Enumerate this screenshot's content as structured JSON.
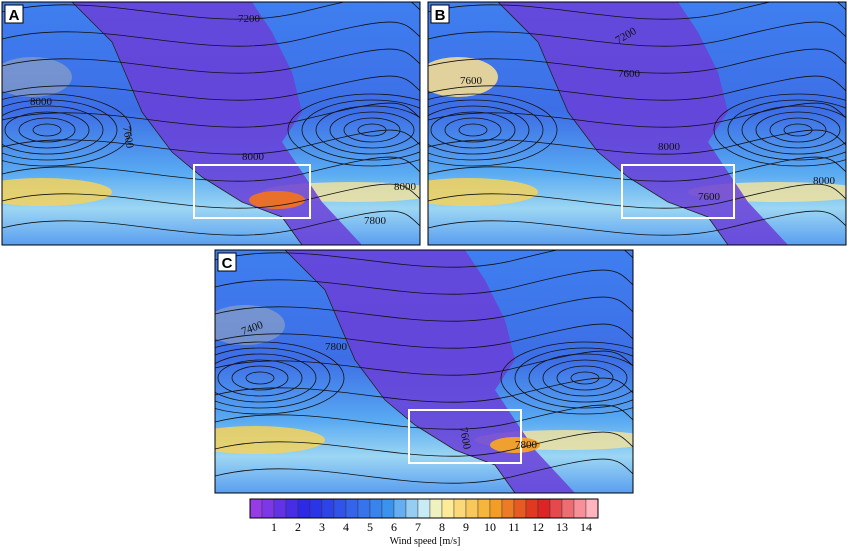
{
  "panels": [
    {
      "label": "A",
      "contour_labels": [
        "7200",
        "8000",
        "7600",
        "8000",
        "8000",
        "7800"
      ]
    },
    {
      "label": "B",
      "contour_labels": [
        "7200",
        "7600",
        "7600",
        "8000",
        "8000",
        "7600"
      ]
    },
    {
      "label": "C",
      "contour_labels": [
        "7400",
        "7800",
        "7600",
        "7800"
      ]
    }
  ],
  "colorbar": {
    "ticks": [
      "1",
      "2",
      "3",
      "4",
      "5",
      "6",
      "7",
      "8",
      "9",
      "10",
      "11",
      "12",
      "13",
      "14"
    ],
    "label": "Wind speed [m/s]"
  }
}
